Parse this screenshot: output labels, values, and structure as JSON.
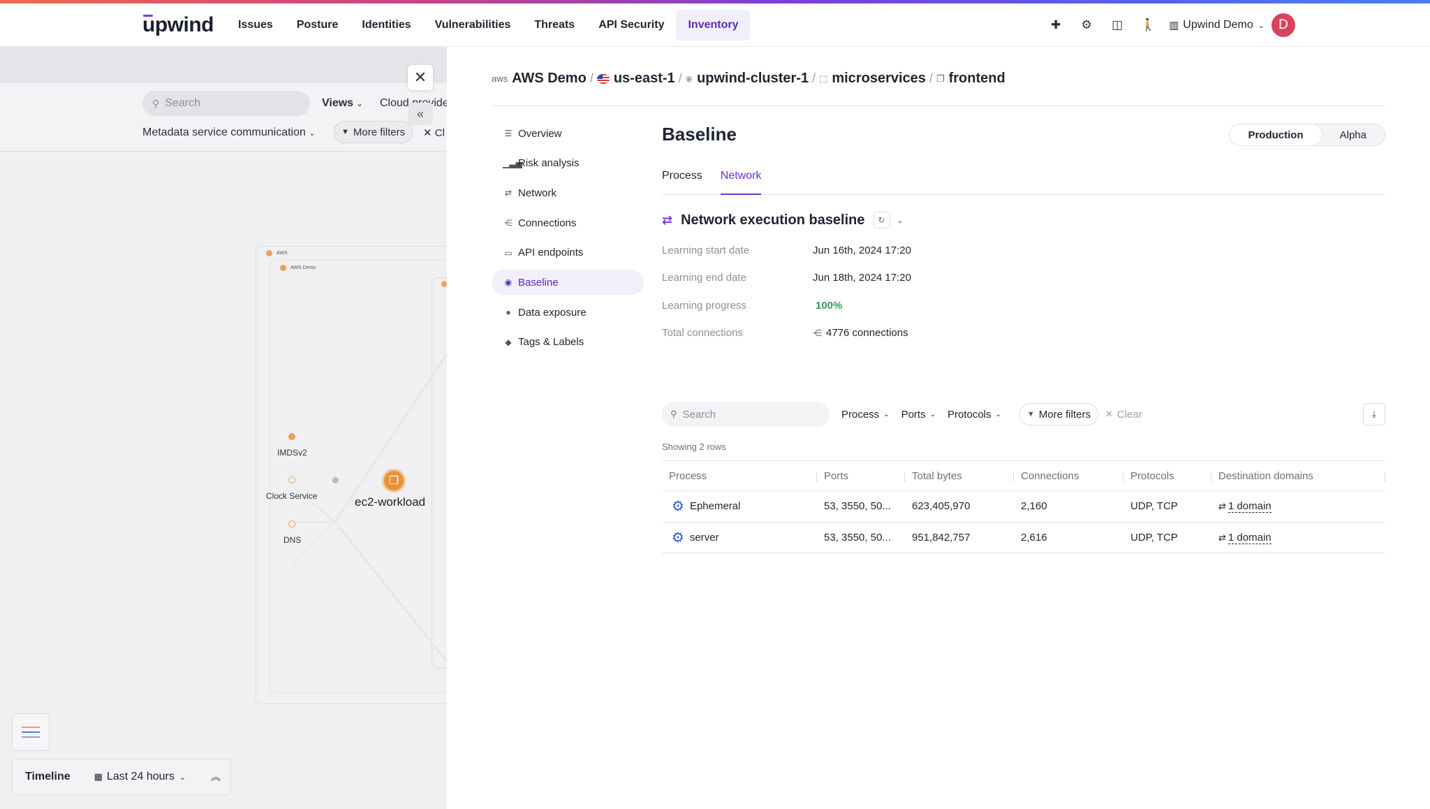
{
  "header": {
    "logo": "upwind",
    "nav": [
      "Issues",
      "Posture",
      "Identities",
      "Vulnerabilities",
      "Threats",
      "API Security",
      "Inventory"
    ],
    "active_nav": "Inventory",
    "org_name": "Upwind Demo",
    "avatar_letter": "D"
  },
  "background_view": {
    "search_placeholder": "Search",
    "views_label": "Views",
    "cloud_provider_label": "Cloud provide",
    "metadata_filter": "Metadata service communication",
    "more_filters": "More filters",
    "clear_label": "Cl",
    "graph": {
      "aws_label": "AWS",
      "aws_demo_label": "AWS Demo",
      "nodes": [
        "IMDSv2",
        "Clock Service",
        "DNS"
      ],
      "workload": "ec2-workload"
    },
    "timeline_label": "Timeline",
    "timeline_range": "Last 24 hours"
  },
  "breadcrumb": [
    "AWS Demo",
    "us-east-1",
    "upwind-cluster-1",
    "microservices",
    "frontend"
  ],
  "breadcrumb_cloud_tag": "aws",
  "sidenav": [
    {
      "label": "Overview",
      "icon": "list-icon"
    },
    {
      "label": "Risk analysis",
      "icon": "bars-icon"
    },
    {
      "label": "Network",
      "icon": "arrows-icon"
    },
    {
      "label": "Connections",
      "icon": "nodes-icon"
    },
    {
      "label": "API endpoints",
      "icon": "window-icon"
    },
    {
      "label": "Baseline",
      "icon": "baseline-icon"
    },
    {
      "label": "Data exposure",
      "icon": "globe-icon"
    },
    {
      "label": "Tags & Labels",
      "icon": "tag-icon"
    }
  ],
  "active_sidenav": "Baseline",
  "content": {
    "title": "Baseline",
    "environments": [
      "Production",
      "Alpha"
    ],
    "active_environment": "Production",
    "tabs": [
      "Process",
      "Network"
    ],
    "active_tab": "Network",
    "section_title": "Network execution baseline",
    "details": [
      {
        "key": "Learning start date",
        "value": "Jun 16th, 2024 17:20"
      },
      {
        "key": "Learning end date",
        "value": "Jun 18th, 2024 17:20"
      },
      {
        "key": "Learning progress",
        "value": "100%"
      },
      {
        "key": "Total connections",
        "value": "4776 connections"
      }
    ],
    "filters": {
      "search_placeholder": "Search",
      "dropdowns": [
        "Process",
        "Ports",
        "Protocols"
      ],
      "more_filters": "More filters",
      "clear": "Clear"
    },
    "showing": "Showing 2 rows",
    "table": {
      "columns": [
        "Process",
        "Ports",
        "Total bytes",
        "Connections",
        "Protocols",
        "Destination domains"
      ],
      "rows": [
        {
          "process": "Ephemeral",
          "ports": "53, 3550, 50...",
          "total_bytes": "623,405,970",
          "connections": "2,160",
          "protocols": "UDP, TCP",
          "domains": "1 domain"
        },
        {
          "process": "server",
          "ports": "53, 3550, 50...",
          "total_bytes": "951,842,757",
          "connections": "2,616",
          "protocols": "UDP, TCP",
          "domains": "1 domain"
        }
      ]
    }
  },
  "colors": {
    "accent": "#6a34c8",
    "progress_green": "#2f9e4f",
    "process_icon": "#2c5fd0",
    "avatar": "#d9435e"
  }
}
